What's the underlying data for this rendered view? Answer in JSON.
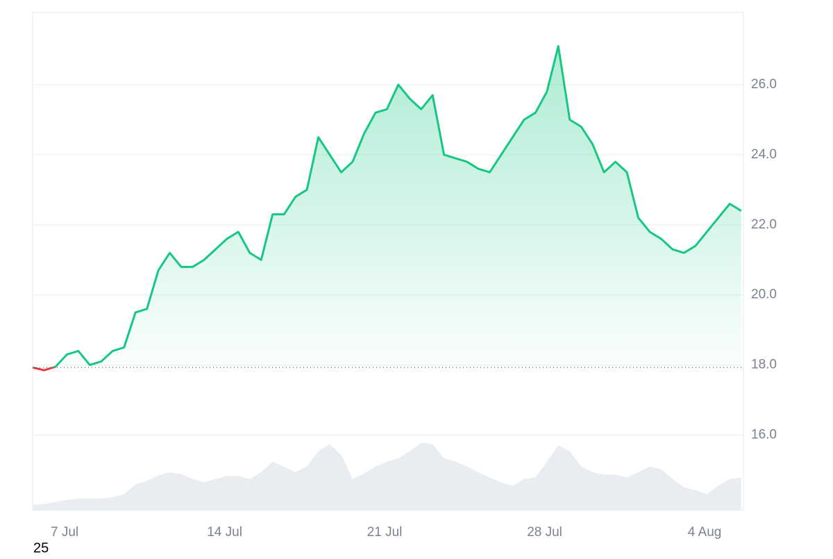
{
  "chart_data": {
    "type": "line",
    "x": [
      5.6,
      6.1,
      6.6,
      7.1,
      7.6,
      8.1,
      8.6,
      9.1,
      9.6,
      10.1,
      10.6,
      11.1,
      11.6,
      12.1,
      12.6,
      13.1,
      13.6,
      14.1,
      14.6,
      15.1,
      15.6,
      16.1,
      16.6,
      17.1,
      17.6,
      18.1,
      18.6,
      19.1,
      19.6,
      20.1,
      20.6,
      21.1,
      21.6,
      22.1,
      22.6,
      23.1,
      23.6,
      24.1,
      24.6,
      25.1,
      25.6,
      26.1,
      26.6,
      27.1,
      27.6,
      28.1,
      28.6,
      29.1,
      29.6,
      30.1,
      30.6,
      31.1,
      31.6,
      32.1,
      32.6,
      33.1,
      33.6,
      34.1,
      34.6,
      35.1,
      35.6,
      36.1,
      36.6
    ],
    "series": [
      {
        "color": "#16c784",
        "values": [
          17.93,
          17.85,
          17.95,
          18.3,
          18.4,
          18.0,
          18.1,
          18.4,
          18.5,
          19.5,
          19.6,
          20.7,
          21.2,
          20.8,
          20.8,
          21.0,
          21.3,
          21.6,
          21.8,
          21.2,
          21.0,
          22.3,
          22.3,
          22.8,
          23.0,
          24.5,
          24.0,
          23.5,
          23.8,
          24.6,
          25.2,
          25.3,
          26.0,
          25.6,
          25.3,
          25.7,
          24.0,
          23.9,
          23.8,
          23.6,
          23.5,
          24.0,
          24.5,
          25.0,
          25.2,
          25.8,
          27.1,
          25.0,
          24.8,
          24.3,
          23.5,
          23.8,
          23.5,
          22.2,
          21.8,
          21.6,
          21.3,
          21.2,
          21.4,
          21.8,
          22.2,
          22.6,
          22.4
        ]
      },
      {
        "color": "#e9ecf0",
        "values": [
          14.01,
          14.03,
          14.09,
          14.15,
          14.19,
          14.19,
          14.19,
          14.23,
          14.31,
          14.59,
          14.69,
          14.85,
          14.94,
          14.88,
          14.75,
          14.65,
          14.75,
          14.83,
          14.83,
          14.75,
          14.94,
          15.24,
          15.1,
          14.94,
          15.1,
          15.54,
          15.74,
          15.44,
          14.75,
          14.9,
          15.1,
          15.24,
          15.34,
          15.54,
          15.78,
          15.74,
          15.34,
          15.24,
          15.1,
          14.94,
          14.79,
          14.65,
          14.55,
          14.75,
          14.79,
          15.24,
          15.7,
          15.54,
          15.1,
          14.94,
          14.87,
          14.87,
          14.79,
          14.94,
          15.1,
          15.02,
          14.75,
          14.51,
          14.43,
          14.31,
          14.55,
          14.75,
          14.79
        ]
      }
    ],
    "baseline": 17.93,
    "baseline_down_color": "#ea3943",
    "xlim": [
      5.6,
      36.7
    ],
    "xticks": [
      {
        "value": 7,
        "label": "7 Jul"
      },
      {
        "value": 14,
        "label": "14 Jul"
      },
      {
        "value": 21,
        "label": "21 Jul"
      },
      {
        "value": 28,
        "label": "28 Jul"
      },
      {
        "value": 35,
        "label": "4 Aug"
      }
    ],
    "ylim": [
      13.85,
      28.06
    ],
    "yticks": [
      {
        "value": 16,
        "label": "16.0"
      },
      {
        "value": 18,
        "label": "18.0"
      },
      {
        "value": 20,
        "label": "20.0"
      },
      {
        "value": 22,
        "label": "22.0"
      },
      {
        "value": 24,
        "label": "24.0"
      },
      {
        "value": 26,
        "label": "26.0"
      }
    ],
    "grid": true,
    "footnote": "25"
  }
}
